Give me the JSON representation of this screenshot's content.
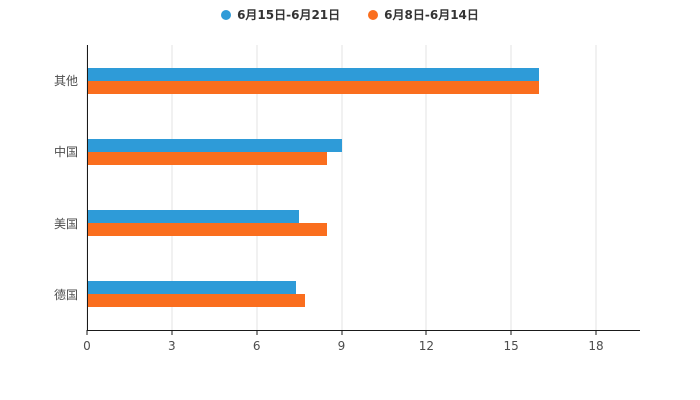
{
  "chart_data": {
    "type": "bar",
    "orientation": "horizontal",
    "title": "",
    "categories": [
      "其他",
      "中国",
      "美国",
      "德国"
    ],
    "series": [
      {
        "name": "6月15日-6月21日",
        "color": "#2e9bd8",
        "values": [
          16,
          9,
          7.5,
          7.4
        ]
      },
      {
        "name": "6月8日-6月14日",
        "color": "#fa6e1e",
        "values": [
          16,
          8.5,
          8.5,
          7.7
        ]
      }
    ],
    "xlim": [
      0,
      18
    ],
    "xticks": [
      0,
      3,
      6,
      9,
      12,
      15,
      18
    ],
    "grid": true,
    "legend_position": "top",
    "axis_color": "#1a1a1a",
    "gridline_color": "#e3e3e3"
  }
}
